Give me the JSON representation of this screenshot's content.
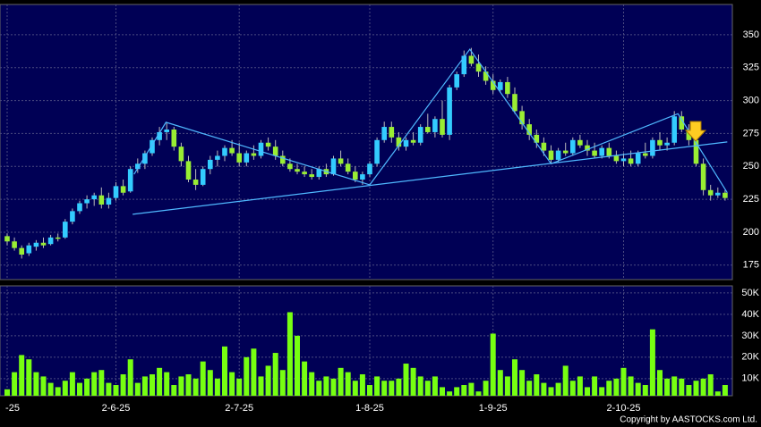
{
  "chart_data": {
    "type": "candlestick",
    "up_color": "#33ccff",
    "down_color": "#99ee33",
    "volume_color": "#77ff11",
    "line_color": "#4fb8ff",
    "ylim": [
      164,
      373
    ],
    "yticks": [
      175,
      200,
      225,
      250,
      275,
      300,
      325,
      350
    ],
    "volume_ylim": [
      2000,
      53300
    ],
    "volume_ticks": [
      {
        "value": 10000,
        "label": "10K"
      },
      {
        "value": 20000,
        "label": "20K"
      },
      {
        "value": 30000,
        "label": "30K"
      },
      {
        "value": 40000,
        "label": "40K"
      },
      {
        "value": 50000,
        "label": "50K"
      }
    ],
    "xticks": [
      {
        "value": 0,
        "label": "-25"
      },
      {
        "value": 15,
        "label": "2-6-25"
      },
      {
        "value": 32,
        "label": "2-7-25"
      },
      {
        "value": 50,
        "label": "1-8-25"
      },
      {
        "value": 67,
        "label": "1-9-25"
      },
      {
        "value": 85,
        "label": "2-10-25"
      }
    ],
    "grid": true,
    "ohlc": [
      [
        197,
        199,
        190,
        193
      ],
      [
        193,
        196,
        186,
        188
      ],
      [
        188,
        190,
        180,
        183
      ],
      [
        184,
        192,
        182,
        190
      ],
      [
        189,
        194,
        186,
        192
      ],
      [
        192,
        196,
        188,
        190
      ],
      [
        191,
        198,
        190,
        196
      ],
      [
        196,
        199,
        193,
        195
      ],
      [
        196,
        210,
        195,
        208
      ],
      [
        208,
        218,
        206,
        216
      ],
      [
        216,
        224,
        214,
        222
      ],
      [
        222,
        228,
        218,
        225
      ],
      [
        225,
        230,
        220,
        228
      ],
      [
        228,
        234,
        218,
        221
      ],
      [
        221,
        230,
        218,
        226
      ],
      [
        226,
        238,
        224,
        235
      ],
      [
        235,
        240,
        228,
        230
      ],
      [
        231,
        250,
        230,
        248
      ],
      [
        248,
        256,
        245,
        252
      ],
      [
        252,
        262,
        248,
        260
      ],
      [
        260,
        272,
        258,
        270
      ],
      [
        270,
        280,
        266,
        276
      ],
      [
        276,
        283,
        270,
        278
      ],
      [
        278,
        280,
        262,
        265
      ],
      [
        265,
        268,
        250,
        254
      ],
      [
        254,
        258,
        238,
        240
      ],
      [
        240,
        248,
        232,
        236
      ],
      [
        236,
        250,
        235,
        248
      ],
      [
        248,
        258,
        244,
        255
      ],
      [
        255,
        262,
        250,
        258
      ],
      [
        258,
        266,
        254,
        264
      ],
      [
        264,
        270,
        258,
        260
      ],
      [
        260,
        268,
        250,
        253
      ],
      [
        253,
        262,
        250,
        260
      ],
      [
        260,
        266,
        255,
        258
      ],
      [
        258,
        270,
        256,
        268
      ],
      [
        268,
        272,
        262,
        265
      ],
      [
        265,
        270,
        255,
        258
      ],
      [
        258,
        262,
        250,
        252
      ],
      [
        252,
        256,
        246,
        248
      ],
      [
        248,
        252,
        244,
        246
      ],
      [
        246,
        250,
        242,
        244
      ],
      [
        244,
        248,
        240,
        242
      ],
      [
        242,
        250,
        240,
        248
      ],
      [
        248,
        252,
        242,
        244
      ],
      [
        244,
        258,
        243,
        256
      ],
      [
        256,
        262,
        250,
        252
      ],
      [
        252,
        256,
        244,
        246
      ],
      [
        246,
        250,
        238,
        240
      ],
      [
        240,
        246,
        236,
        244
      ],
      [
        244,
        254,
        242,
        252
      ],
      [
        252,
        272,
        250,
        270
      ],
      [
        270,
        284,
        268,
        280
      ],
      [
        280,
        284,
        268,
        272
      ],
      [
        272,
        276,
        262,
        265
      ],
      [
        265,
        272,
        262,
        270
      ],
      [
        270,
        276,
        266,
        268
      ],
      [
        268,
        282,
        266,
        280
      ],
      [
        280,
        290,
        275,
        276
      ],
      [
        276,
        288,
        272,
        286
      ],
      [
        286,
        300,
        272,
        274
      ],
      [
        274,
        312,
        270,
        310
      ],
      [
        310,
        322,
        308,
        320
      ],
      [
        320,
        338,
        318,
        334
      ],
      [
        334,
        340,
        326,
        328
      ],
      [
        328,
        335,
        318,
        322
      ],
      [
        322,
        326,
        312,
        315
      ],
      [
        315,
        320,
        305,
        308
      ],
      [
        308,
        316,
        306,
        314
      ],
      [
        314,
        318,
        302,
        305
      ],
      [
        305,
        310,
        290,
        292
      ],
      [
        292,
        296,
        278,
        282
      ],
      [
        282,
        286,
        270,
        274
      ],
      [
        274,
        278,
        264,
        268
      ],
      [
        268,
        272,
        258,
        262
      ],
      [
        262,
        266,
        252,
        255
      ],
      [
        255,
        264,
        253,
        262
      ],
      [
        262,
        268,
        258,
        260
      ],
      [
        260,
        272,
        258,
        270
      ],
      [
        270,
        274,
        264,
        266
      ],
      [
        266,
        270,
        258,
        262
      ],
      [
        262,
        268,
        256,
        258
      ],
      [
        258,
        266,
        256,
        264
      ],
      [
        264,
        268,
        256,
        258
      ],
      [
        258,
        262,
        252,
        254
      ],
      [
        254,
        260,
        250,
        256
      ],
      [
        256,
        262,
        250,
        252
      ],
      [
        252,
        262,
        250,
        260
      ],
      [
        260,
        268,
        256,
        258
      ],
      [
        258,
        272,
        256,
        270
      ],
      [
        270,
        276,
        262,
        266
      ],
      [
        266,
        272,
        262,
        268
      ],
      [
        268,
        292,
        266,
        288
      ],
      [
        288,
        292,
        276,
        278
      ],
      [
        278,
        282,
        266,
        270
      ],
      [
        270,
        272,
        250,
        252
      ],
      [
        252,
        256,
        228,
        232
      ],
      [
        232,
        236,
        224,
        228
      ],
      [
        228,
        234,
        226,
        230
      ],
      [
        230,
        232,
        224,
        226
      ]
    ],
    "volume": [
      5000,
      13000,
      21000,
      19000,
      13000,
      11000,
      8000,
      6000,
      9000,
      13000,
      8000,
      10000,
      13000,
      14000,
      8000,
      7000,
      12000,
      19000,
      8000,
      11000,
      12000,
      15000,
      13000,
      7000,
      11000,
      12000,
      10000,
      18000,
      14000,
      10000,
      25000,
      13000,
      10000,
      20000,
      24000,
      11000,
      16000,
      22000,
      14000,
      41000,
      30000,
      18000,
      13000,
      9000,
      11000,
      10000,
      15000,
      13000,
      9000,
      12000,
      7000,
      11000,
      9000,
      9000,
      10000,
      17000,
      15000,
      11000,
      9000,
      11000,
      6000,
      4000,
      6000,
      7000,
      8000,
      4000,
      9000,
      31000,
      14000,
      11000,
      19000,
      14000,
      9000,
      12000,
      8000,
      6000,
      8000,
      16000,
      9000,
      11000,
      6000,
      11000,
      6000,
      9000,
      10000,
      15000,
      11000,
      8000,
      7000,
      33000,
      14000,
      10000,
      11000,
      10000,
      7000,
      9000,
      10000,
      12000,
      4000,
      7000
    ],
    "neckline": [
      [
        17.3,
        213.6
      ],
      [
        99.3,
        268.6
      ]
    ],
    "zigzag": [
      [
        17.5,
        244
      ],
      [
        21.9,
        283.5
      ],
      [
        50,
        236
      ],
      [
        63.8,
        339
      ],
      [
        75,
        252
      ],
      [
        92.5,
        290
      ],
      [
        99.3,
        230
      ]
    ],
    "copyright": "Copyright by AASTOCKS.com Ltd."
  }
}
